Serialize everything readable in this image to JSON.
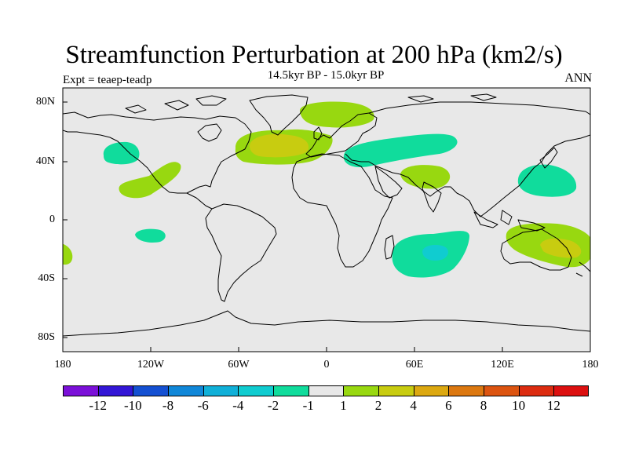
{
  "title": "Streamfunction Perturbation at 200 hPa (km2/s)",
  "subtitle": "14.5kyr BP - 15.0kyr BP",
  "experiment": "Expt = teaep-teadp",
  "season": "ANN",
  "map": {
    "projection": "cylindrical-equidistant",
    "background_color": "#e8e8e8",
    "lat_ticks": [
      "80N",
      "40N",
      "0",
      "40S",
      "80S"
    ],
    "lon_ticks": [
      "180",
      "120W",
      "60W",
      "0",
      "60E",
      "120E",
      "180"
    ]
  },
  "colorbar": {
    "colors": [
      "#7b10d8",
      "#3316d6",
      "#1450d2",
      "#1087d8",
      "#10b0d8",
      "#10ccd0",
      "#10dc9c",
      "#e8e8e8",
      "#98d810",
      "#c8cc10",
      "#dca810",
      "#dc7810",
      "#dc5410",
      "#dc2c10",
      "#dc1010"
    ],
    "labels": [
      "-12",
      "-10",
      "-8",
      "-6",
      "-4",
      "-2",
      "-1",
      "1",
      "2",
      "4",
      "6",
      "8",
      "10",
      "12"
    ]
  }
}
